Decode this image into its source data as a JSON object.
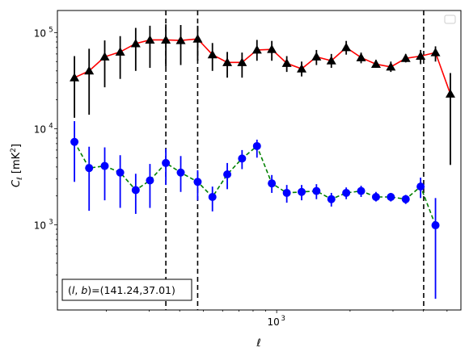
{
  "chart_data": {
    "type": "line",
    "xscale": "log",
    "yscale": "log",
    "xlim": [
      126,
      5700
    ],
    "ylim": [
      130,
      170000
    ],
    "xlabel": "ℓ",
    "ylabel": "C_ℓ [mK²]",
    "x_ticks": [
      {
        "value": 1000,
        "label": "10",
        "exp": "3"
      }
    ],
    "y_ticks": [
      {
        "value": 1000,
        "label": "10",
        "exp": "3"
      },
      {
        "value": 10000,
        "label": "10",
        "exp": "4"
      },
      {
        "value": 100000,
        "label": "10",
        "exp": "5"
      }
    ],
    "grid": false,
    "legend": {
      "placement": "top-right",
      "entries": []
    },
    "annotation": "(l, b)=(141.24,37.01)",
    "vlines": [
      351,
      474,
      4010
    ],
    "series": [
      {
        "marker": "triangle",
        "color": "#000000",
        "line_color": "#ff0000",
        "line_style": "solid",
        "points": [
          {
            "x": 148,
            "y": 34000,
            "lo": 13000,
            "hi": 57000
          },
          {
            "x": 170,
            "y": 40000,
            "lo": 14000,
            "hi": 68000
          },
          {
            "x": 197,
            "y": 56000,
            "lo": 27000,
            "hi": 83000
          },
          {
            "x": 228,
            "y": 63000,
            "lo": 33000,
            "hi": 92000
          },
          {
            "x": 264,
            "y": 77000,
            "lo": 40000,
            "hi": 112000
          },
          {
            "x": 302,
            "y": 84000,
            "lo": 43000,
            "hi": 118000
          },
          {
            "x": 351,
            "y": 84000,
            "lo": 44000,
            "hi": 122000
          },
          {
            "x": 404,
            "y": 83000,
            "lo": 46000,
            "hi": 120000
          },
          {
            "x": 474,
            "y": 86000,
            "lo": 51000,
            "hi": 118000
          },
          {
            "x": 545,
            "y": 59000,
            "lo": 40000,
            "hi": 78000
          },
          {
            "x": 627,
            "y": 49000,
            "lo": 34000,
            "hi": 63000
          },
          {
            "x": 721,
            "y": 49000,
            "lo": 34000,
            "hi": 62000
          },
          {
            "x": 830,
            "y": 66000,
            "lo": 51000,
            "hi": 84000
          },
          {
            "x": 955,
            "y": 67000,
            "lo": 51000,
            "hi": 82000
          },
          {
            "x": 1100,
            "y": 48000,
            "lo": 39000,
            "hi": 57000
          },
          {
            "x": 1266,
            "y": 42000,
            "lo": 35000,
            "hi": 50000
          },
          {
            "x": 1456,
            "y": 56000,
            "lo": 46000,
            "hi": 66000
          },
          {
            "x": 1676,
            "y": 51000,
            "lo": 43000,
            "hi": 60000
          },
          {
            "x": 1929,
            "y": 70000,
            "lo": 59000,
            "hi": 82000
          },
          {
            "x": 2220,
            "y": 55000,
            "lo": 48000,
            "hi": 62000
          },
          {
            "x": 2555,
            "y": 47000,
            "lo": 43000,
            "hi": 52000
          },
          {
            "x": 2940,
            "y": 44000,
            "lo": 39000,
            "hi": 50000
          },
          {
            "x": 3384,
            "y": 54000,
            "lo": 49000,
            "hi": 60000
          },
          {
            "x": 3895,
            "y": 57000,
            "lo": 47000,
            "hi": 66000
          },
          {
            "x": 4483,
            "y": 62000,
            "lo": 50000,
            "hi": 72000
          },
          {
            "x": 5160,
            "y": 23000,
            "lo": 4200,
            "hi": 38000
          }
        ]
      },
      {
        "marker": "circle",
        "color": "#0000ff",
        "line_color": "#008000",
        "line_style": "dashed",
        "points": [
          {
            "x": 148,
            "y": 7300,
            "lo": 2800,
            "hi": 12000
          },
          {
            "x": 170,
            "y": 3900,
            "lo": 1400,
            "hi": 6500
          },
          {
            "x": 197,
            "y": 4100,
            "lo": 1800,
            "hi": 6400
          },
          {
            "x": 228,
            "y": 3500,
            "lo": 1500,
            "hi": 5300
          },
          {
            "x": 264,
            "y": 2300,
            "lo": 1300,
            "hi": 3400
          },
          {
            "x": 302,
            "y": 2900,
            "lo": 1500,
            "hi": 4300
          },
          {
            "x": 351,
            "y": 4400,
            "lo": 2600,
            "hi": 6200
          },
          {
            "x": 404,
            "y": 3500,
            "lo": 2200,
            "hi": 5200
          },
          {
            "x": 474,
            "y": 2800,
            "lo": 1800,
            "hi": 3700
          },
          {
            "x": 545,
            "y": 1950,
            "lo": 1380,
            "hi": 2500
          },
          {
            "x": 627,
            "y": 3350,
            "lo": 2350,
            "hi": 4400
          },
          {
            "x": 721,
            "y": 4900,
            "lo": 3800,
            "hi": 6000
          },
          {
            "x": 830,
            "y": 6600,
            "lo": 5000,
            "hi": 7700
          },
          {
            "x": 955,
            "y": 2700,
            "lo": 2150,
            "hi": 3300
          },
          {
            "x": 1100,
            "y": 2150,
            "lo": 1700,
            "hi": 2600
          },
          {
            "x": 1266,
            "y": 2200,
            "lo": 1800,
            "hi": 2600
          },
          {
            "x": 1456,
            "y": 2250,
            "lo": 1850,
            "hi": 2650
          },
          {
            "x": 1676,
            "y": 1850,
            "lo": 1550,
            "hi": 2150
          },
          {
            "x": 1929,
            "y": 2150,
            "lo": 1850,
            "hi": 2450
          },
          {
            "x": 2220,
            "y": 2250,
            "lo": 1950,
            "hi": 2550
          },
          {
            "x": 2555,
            "y": 1950,
            "lo": 1750,
            "hi": 2200
          },
          {
            "x": 2940,
            "y": 1950,
            "lo": 1750,
            "hi": 2150
          },
          {
            "x": 3384,
            "y": 1850,
            "lo": 1650,
            "hi": 2050
          },
          {
            "x": 3895,
            "y": 2500,
            "lo": 1900,
            "hi": 3100
          },
          {
            "x": 4483,
            "y": 990,
            "lo": 170,
            "hi": 1900
          }
        ]
      }
    ]
  }
}
